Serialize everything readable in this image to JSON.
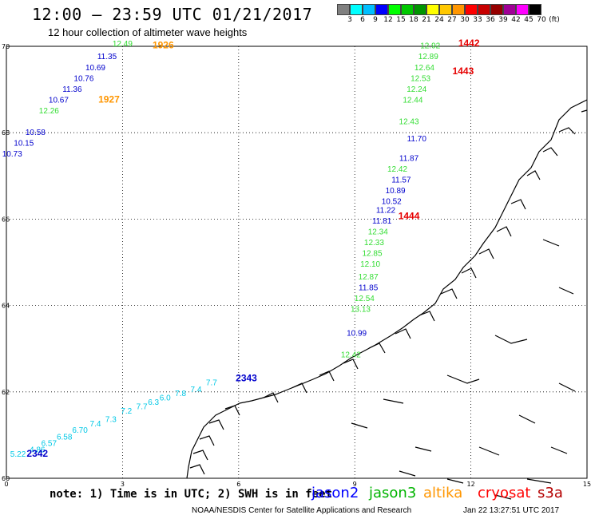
{
  "header": {
    "title": "12:00 – 23:59 UTC 01/21/2017",
    "subtitle": "12 hour collection of altimeter wave heights"
  },
  "color_scale": {
    "labels": [
      "3",
      "6",
      "9",
      "12",
      "15",
      "18",
      "21",
      "24",
      "27",
      "30",
      "33",
      "36",
      "39",
      "42",
      "45",
      "70"
    ],
    "unit": "(ft)",
    "colors": [
      "#808080",
      "#00ffff",
      "#00bfff",
      "#0000ff",
      "#00ff00",
      "#00c800",
      "#009600",
      "#ffff00",
      "#ffc800",
      "#ff9600",
      "#ff0000",
      "#c80000",
      "#960000",
      "#a00096",
      "#ff00ff",
      "#000000"
    ]
  },
  "axes": {
    "lat_labels": [
      "70",
      "68",
      "66",
      "64",
      "62",
      "60"
    ],
    "lon_labels": [
      "0",
      "3",
      "6",
      "9",
      "12",
      "15"
    ]
  },
  "chart_data": {
    "type": "scatter",
    "xlabel": "",
    "ylabel": "",
    "xlim": [
      0,
      15
    ],
    "ylim": [
      60,
      70
    ],
    "pass_labels": [
      {
        "text": "1926",
        "satellite": "altika",
        "lon": 4.05,
        "lat": 69.95
      },
      {
        "text": "1927",
        "satellite": "altika",
        "lon": 2.65,
        "lat": 68.7
      },
      {
        "text": "1442",
        "satellite": "cryosat",
        "lon": 11.95,
        "lat": 70.0
      },
      {
        "text": "1443",
        "satellite": "cryosat",
        "lon": 11.8,
        "lat": 69.35
      },
      {
        "text": "1444",
        "satellite": "cryosat",
        "lon": 10.4,
        "lat": 66.0
      },
      {
        "text": "2343",
        "satellite": "jason2",
        "lon": 6.2,
        "lat": 62.25
      },
      {
        "text": "2342",
        "satellite": "jason2",
        "lon": 0.8,
        "lat": 60.5
      }
    ],
    "series": [
      {
        "name": "jason2",
        "points": [
          {
            "lon": 2.6,
            "lat": 69.7,
            "value": "11.35"
          },
          {
            "lon": 2.3,
            "lat": 69.45,
            "value": "10.69"
          },
          {
            "lon": 2.0,
            "lat": 69.2,
            "value": "10.76"
          },
          {
            "lon": 1.7,
            "lat": 68.95,
            "value": "11.36"
          },
          {
            "lon": 1.35,
            "lat": 68.7,
            "value": "10.67"
          },
          {
            "lon": 0.75,
            "lat": 67.95,
            "value": "10.58"
          },
          {
            "lon": 0.45,
            "lat": 67.7,
            "value": "10.15"
          },
          {
            "lon": 0.15,
            "lat": 67.45,
            "value": "10.73"
          },
          {
            "lon": 10.6,
            "lat": 67.8,
            "value": "11.70"
          },
          {
            "lon": 10.4,
            "lat": 67.35,
            "value": "11.87"
          },
          {
            "lon": 10.2,
            "lat": 66.85,
            "value": "11.57"
          },
          {
            "lon": 10.05,
            "lat": 66.6,
            "value": "10.89"
          },
          {
            "lon": 9.95,
            "lat": 66.35,
            "value": "10.52"
          },
          {
            "lon": 9.8,
            "lat": 66.15,
            "value": "11.22"
          },
          {
            "lon": 9.7,
            "lat": 65.9,
            "value": "11.81"
          },
          {
            "lon": 9.35,
            "lat": 64.35,
            "value": "11.85"
          },
          {
            "lon": 9.05,
            "lat": 63.3,
            "value": "10.99"
          }
        ]
      },
      {
        "name": "jason3",
        "points": [
          {
            "lon": 3.0,
            "lat": 70.0,
            "value": "12.49"
          },
          {
            "lon": 1.1,
            "lat": 68.45,
            "value": "12.26"
          },
          {
            "lon": 10.95,
            "lat": 69.95,
            "value": "12.92"
          },
          {
            "lon": 10.9,
            "lat": 69.7,
            "value": "12.89"
          },
          {
            "lon": 10.8,
            "lat": 69.45,
            "value": "12.64"
          },
          {
            "lon": 10.7,
            "lat": 69.2,
            "value": "12.53"
          },
          {
            "lon": 10.6,
            "lat": 68.95,
            "value": "12.24"
          },
          {
            "lon": 10.5,
            "lat": 68.7,
            "value": "12.44"
          },
          {
            "lon": 10.4,
            "lat": 68.2,
            "value": "12.43"
          },
          {
            "lon": 10.1,
            "lat": 67.1,
            "value": "12.42"
          },
          {
            "lon": 9.6,
            "lat": 65.65,
            "value": "12.34"
          },
          {
            "lon": 9.5,
            "lat": 65.4,
            "value": "12.33"
          },
          {
            "lon": 9.45,
            "lat": 65.15,
            "value": "12.85"
          },
          {
            "lon": 9.4,
            "lat": 64.9,
            "value": "12.10"
          },
          {
            "lon": 9.35,
            "lat": 64.6,
            "value": "12.87"
          },
          {
            "lon": 9.25,
            "lat": 64.1,
            "value": "12.54"
          },
          {
            "lon": 9.15,
            "lat": 63.85,
            "value": "13.13"
          },
          {
            "lon": 8.9,
            "lat": 62.8,
            "value": "12.42"
          }
        ]
      },
      {
        "name": "saral",
        "points": [
          {
            "lon": 5.3,
            "lat": 62.15,
            "value": "7.7"
          },
          {
            "lon": 4.9,
            "lat": 62.0,
            "value": "7.4"
          },
          {
            "lon": 4.5,
            "lat": 61.9,
            "value": "7.8"
          },
          {
            "lon": 4.1,
            "lat": 61.8,
            "value": "6.0"
          },
          {
            "lon": 3.8,
            "lat": 61.7,
            "value": "6.3"
          },
          {
            "lon": 3.5,
            "lat": 61.6,
            "value": "7.7"
          },
          {
            "lon": 3.1,
            "lat": 61.5,
            "value": "7.2"
          },
          {
            "lon": 2.7,
            "lat": 61.3,
            "value": "7.3"
          },
          {
            "lon": 2.3,
            "lat": 61.2,
            "value": "7.4"
          },
          {
            "lon": 1.9,
            "lat": 61.05,
            "value": "6.70"
          },
          {
            "lon": 1.5,
            "lat": 60.9,
            "value": "6.58"
          },
          {
            "lon": 1.1,
            "lat": 60.75,
            "value": "6.57"
          },
          {
            "lon": 0.8,
            "lat": 60.6,
            "value": "4.86"
          },
          {
            "lon": 0.3,
            "lat": 60.5,
            "value": "5.22"
          }
        ]
      }
    ]
  },
  "footer": {
    "note": "note:  1) Time is in UTC;  2) SWH is in feet",
    "legend": [
      {
        "label": "jason2",
        "color": "#0000ff"
      },
      {
        "label": "jason3",
        "color": "#00b400"
      },
      {
        "label": "altika",
        "color": "#ff9600"
      },
      {
        "label": "cryosat",
        "color": "#ff0000"
      },
      {
        "label": "s3a",
        "color": "#b40000"
      }
    ],
    "credit": "NOAA/NESDIS Center for Satellite Applications and Research",
    "timestamp": "Jan 22 13:27:51 UTC 2017"
  }
}
